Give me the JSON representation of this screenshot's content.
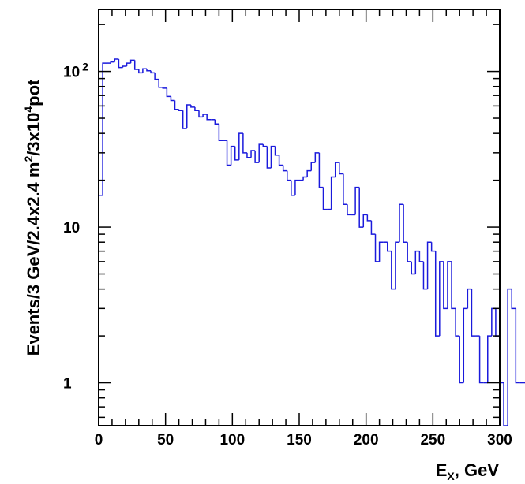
{
  "chart_data": {
    "type": "histogram",
    "xlabel": "E_X, GeV",
    "xlabel_main": "E",
    "xlabel_sub": "X",
    "xlabel_rest": ", GeV",
    "ylabel": "Events/3 GeV/2.4x2.4 m²/3x10⁴pot",
    "ylabel_parts": {
      "a": "Events/3 GeV/2.4x2.4 m",
      "sup1": "2",
      "b": "/3x10",
      "sup2": "4",
      "c": "pot"
    },
    "xlim": [
      0,
      300
    ],
    "ylim": [
      0.53,
      250
    ],
    "yscale": "log",
    "bin_width": 3,
    "x_ticks": [
      "0",
      "50",
      "100",
      "150",
      "200",
      "250",
      "300"
    ],
    "y_ticks": [
      {
        "value": 1,
        "label": "1"
      },
      {
        "value": 10,
        "label": "10"
      },
      {
        "value": 100,
        "label": "10",
        "sup": "2"
      }
    ],
    "color": "#1a1adc",
    "values": [
      16,
      113,
      113,
      115,
      120,
      106,
      108,
      113,
      118,
      103,
      98,
      104,
      101,
      98,
      89,
      79,
      78,
      69,
      65,
      57,
      56,
      43,
      61,
      59,
      56,
      51,
      53,
      49,
      49,
      46,
      36,
      36,
      25,
      33,
      27,
      40,
      30,
      28,
      31,
      26,
      34,
      33,
      24,
      33,
      29,
      25,
      23,
      20,
      16,
      20,
      20,
      21,
      23,
      26,
      30,
      18,
      13,
      13,
      21,
      26,
      22,
      14,
      12,
      12,
      18,
      10,
      12,
      11,
      9,
      6,
      8,
      8,
      7,
      4,
      8,
      14,
      8,
      6,
      5,
      7,
      6,
      4,
      8,
      7,
      2,
      6,
      3,
      6,
      3,
      2,
      1,
      3,
      4,
      2,
      2,
      1,
      1,
      2,
      3,
      2,
      1,
      0,
      4,
      3,
      1,
      1,
      1,
      2,
      2,
      2,
      4,
      2,
      4,
      3,
      4,
      3,
      3,
      0,
      0,
      1,
      2,
      1,
      1,
      1,
      2,
      2,
      0,
      0,
      3,
      0,
      2,
      4,
      0,
      2,
      3,
      0,
      0,
      1,
      0,
      2,
      0,
      3,
      1,
      1,
      0,
      3,
      5,
      3,
      0,
      1
    ]
  }
}
